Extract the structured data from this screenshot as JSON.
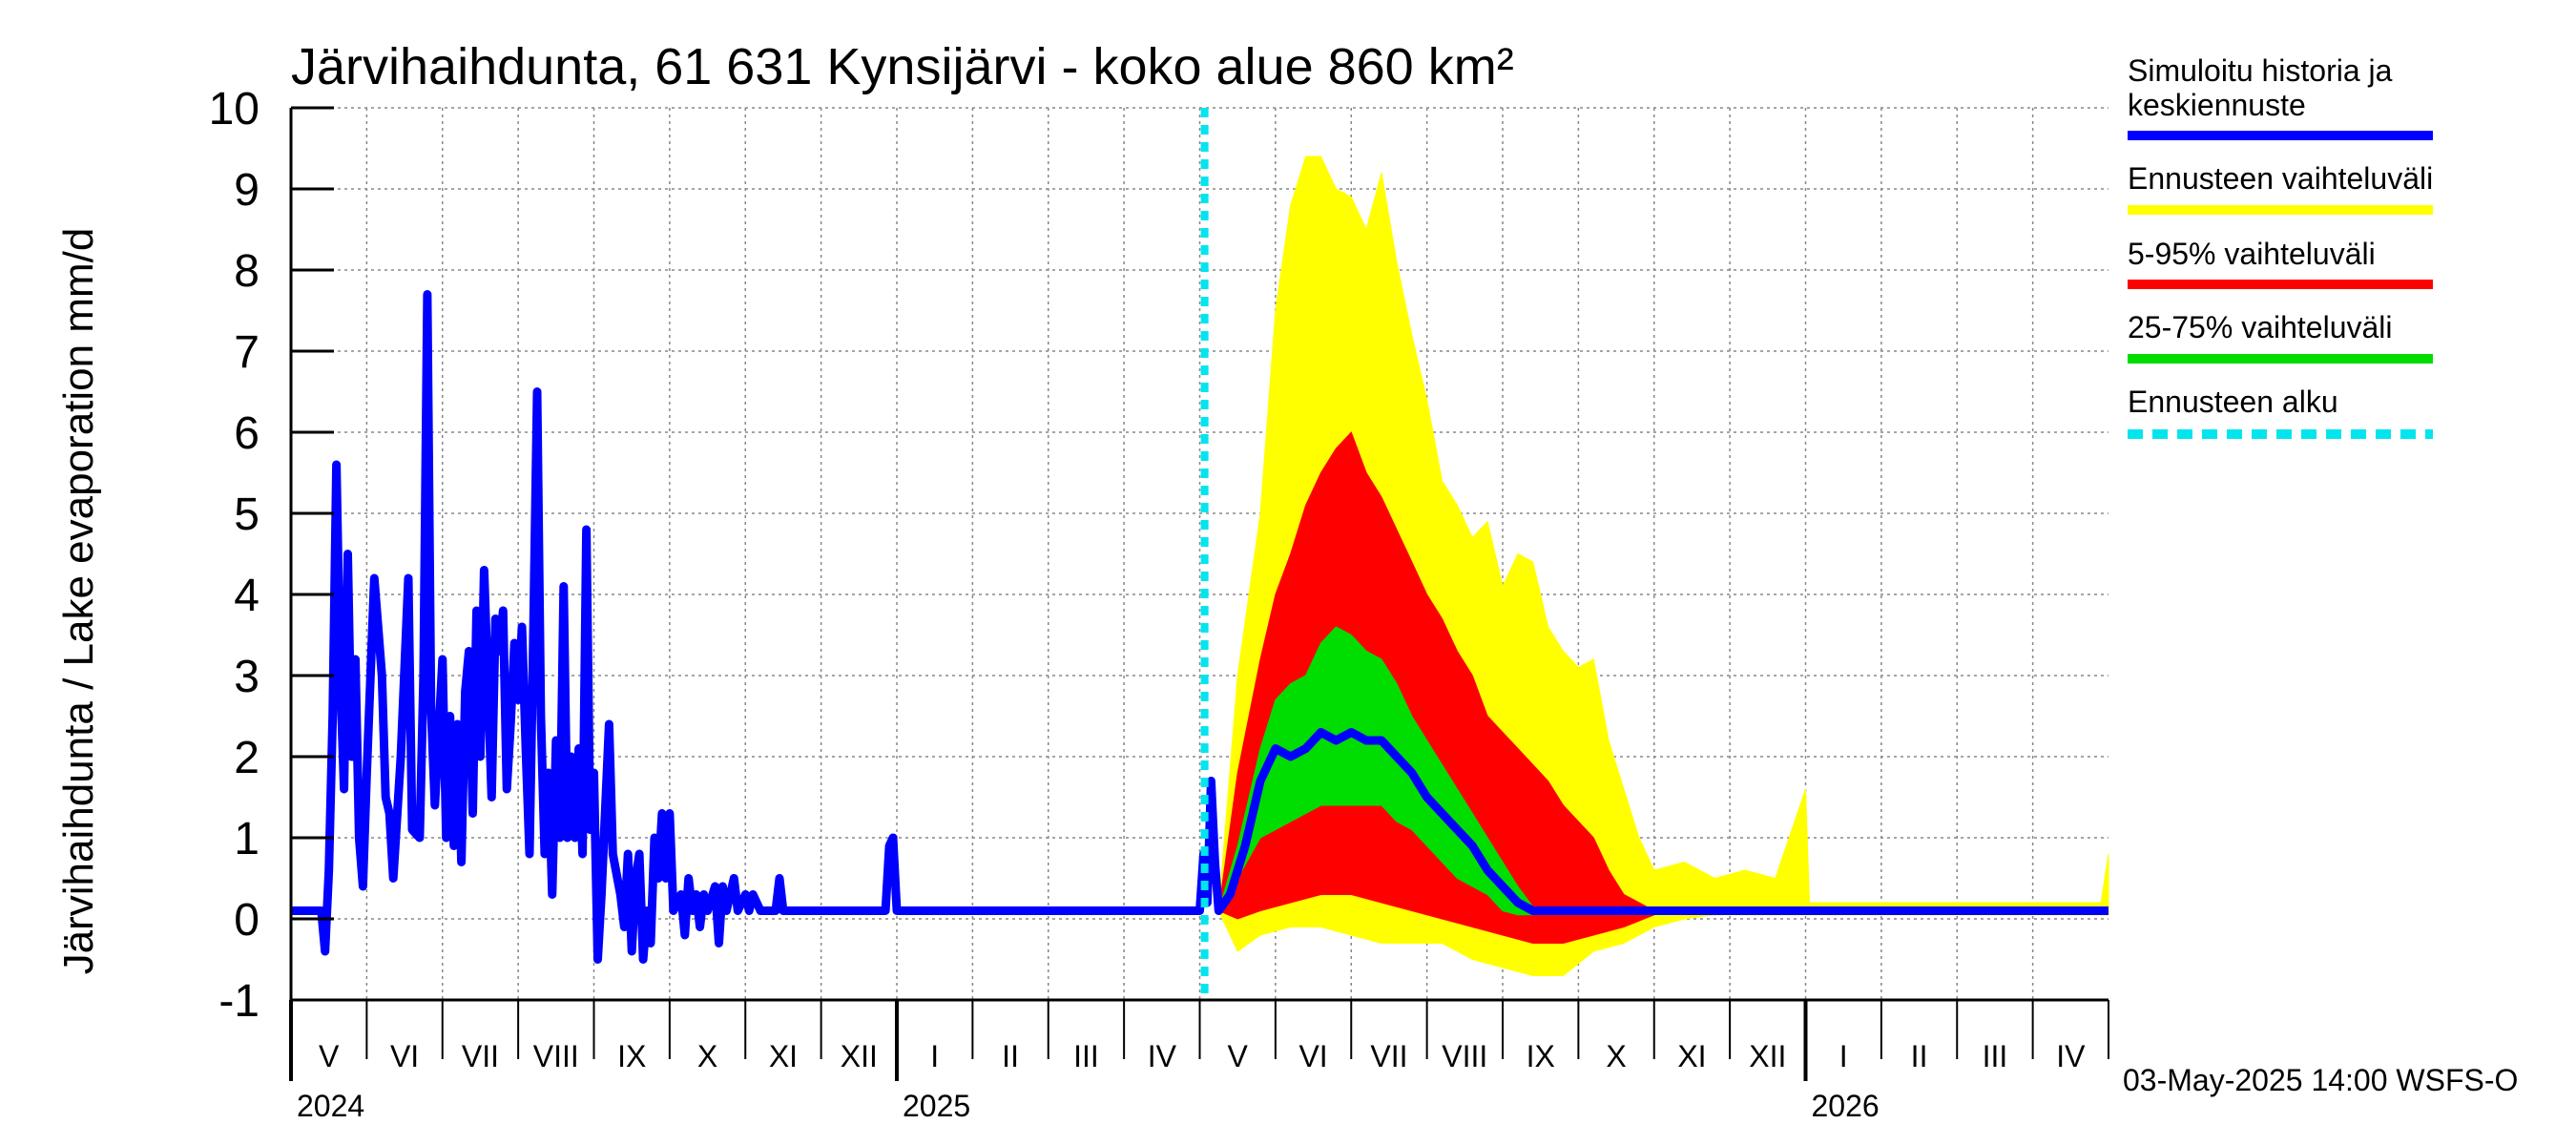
{
  "chart_data": {
    "type": "area",
    "title": "Järvihaihdunta, 61 631 Kynsijärvi - koko alue 860 km²",
    "ylabel": "Järvihaihdunta / Lake evaporation   mm/d",
    "ylim": [
      -1,
      10
    ],
    "yticks": [
      "-1",
      "0",
      "1",
      "2",
      "3",
      "4",
      "5",
      "6",
      "7",
      "8",
      "9",
      "10"
    ],
    "grid": true,
    "legend_position": "right",
    "forecast_start": "2025-05-03",
    "months": [
      {
        "label": "V",
        "year": "2024"
      },
      {
        "label": "VI"
      },
      {
        "label": "VII"
      },
      {
        "label": "VIII"
      },
      {
        "label": "IX"
      },
      {
        "label": "X"
      },
      {
        "label": "XI"
      },
      {
        "label": "XII"
      },
      {
        "label": "I",
        "year": "2025"
      },
      {
        "label": "II"
      },
      {
        "label": "III"
      },
      {
        "label": "IV"
      },
      {
        "label": "V"
      },
      {
        "label": "VI"
      },
      {
        "label": "VII"
      },
      {
        "label": "VIII"
      },
      {
        "label": "IX"
      },
      {
        "label": "X"
      },
      {
        "label": "XI"
      },
      {
        "label": "XII"
      },
      {
        "label": "I",
        "year": "2026"
      },
      {
        "label": "II"
      },
      {
        "label": "III"
      },
      {
        "label": "IV"
      }
    ],
    "series": [
      {
        "name": "Simuloitu historia ja keskiennuste",
        "color": "#0000ff",
        "points": [
          [
            0,
            0.1
          ],
          [
            0.4,
            0.1
          ],
          [
            0.45,
            -0.4
          ],
          [
            0.5,
            0.6
          ],
          [
            0.55,
            2.5
          ],
          [
            0.6,
            5.6
          ],
          [
            0.65,
            3.0
          ],
          [
            0.7,
            1.6
          ],
          [
            0.75,
            4.5
          ],
          [
            0.8,
            2.0
          ],
          [
            0.85,
            3.2
          ],
          [
            0.9,
            1.0
          ],
          [
            0.95,
            0.4
          ],
          [
            1.0,
            1.8
          ],
          [
            1.1,
            4.2
          ],
          [
            1.2,
            3.0
          ],
          [
            1.25,
            1.5
          ],
          [
            1.3,
            1.3
          ],
          [
            1.35,
            0.5
          ],
          [
            1.45,
            2.0
          ],
          [
            1.55,
            4.2
          ],
          [
            1.6,
            1.1
          ],
          [
            1.7,
            1.0
          ],
          [
            1.75,
            3.0
          ],
          [
            1.8,
            7.7
          ],
          [
            1.85,
            2.6
          ],
          [
            1.9,
            1.4
          ],
          [
            2.0,
            3.2
          ],
          [
            2.05,
            1.0
          ],
          [
            2.1,
            2.5
          ],
          [
            2.15,
            0.9
          ],
          [
            2.2,
            2.4
          ],
          [
            2.25,
            0.7
          ],
          [
            2.3,
            2.8
          ],
          [
            2.35,
            3.3
          ],
          [
            2.4,
            1.3
          ],
          [
            2.45,
            3.8
          ],
          [
            2.5,
            2.0
          ],
          [
            2.55,
            4.3
          ],
          [
            2.6,
            2.9
          ],
          [
            2.65,
            1.5
          ],
          [
            2.7,
            3.7
          ],
          [
            2.75,
            3.3
          ],
          [
            2.8,
            3.8
          ],
          [
            2.85,
            1.6
          ],
          [
            2.9,
            2.4
          ],
          [
            2.95,
            3.4
          ],
          [
            3.0,
            2.7
          ],
          [
            3.05,
            3.6
          ],
          [
            3.1,
            2.1
          ],
          [
            3.15,
            0.8
          ],
          [
            3.2,
            3.5
          ],
          [
            3.25,
            6.5
          ],
          [
            3.3,
            2.5
          ],
          [
            3.35,
            0.8
          ],
          [
            3.4,
            1.8
          ],
          [
            3.45,
            0.3
          ],
          [
            3.5,
            2.2
          ],
          [
            3.55,
            1.0
          ],
          [
            3.6,
            4.1
          ],
          [
            3.65,
            1.0
          ],
          [
            3.7,
            2.0
          ],
          [
            3.75,
            1.0
          ],
          [
            3.8,
            2.1
          ],
          [
            3.85,
            0.8
          ],
          [
            3.9,
            4.8
          ],
          [
            3.95,
            1.1
          ],
          [
            4.0,
            1.8
          ],
          [
            4.05,
            -0.5
          ],
          [
            4.1,
            0.3
          ],
          [
            4.2,
            2.4
          ],
          [
            4.25,
            0.8
          ],
          [
            4.35,
            0.3
          ],
          [
            4.4,
            -0.1
          ],
          [
            4.45,
            0.8
          ],
          [
            4.5,
            -0.4
          ],
          [
            4.55,
            0.5
          ],
          [
            4.6,
            0.8
          ],
          [
            4.65,
            -0.5
          ],
          [
            4.7,
            0.1
          ],
          [
            4.75,
            -0.3
          ],
          [
            4.8,
            1.0
          ],
          [
            4.85,
            0.5
          ],
          [
            4.9,
            1.3
          ],
          [
            4.95,
            0.5
          ],
          [
            5.0,
            1.3
          ],
          [
            5.05,
            0.1
          ],
          [
            5.15,
            0.3
          ],
          [
            5.2,
            -0.2
          ],
          [
            5.25,
            0.5
          ],
          [
            5.3,
            0.1
          ],
          [
            5.35,
            0.3
          ],
          [
            5.4,
            -0.1
          ],
          [
            5.45,
            0.3
          ],
          [
            5.5,
            0.1
          ],
          [
            5.6,
            0.4
          ],
          [
            5.65,
            -0.3
          ],
          [
            5.7,
            0.4
          ],
          [
            5.75,
            0.1
          ],
          [
            5.85,
            0.5
          ],
          [
            5.9,
            0.1
          ],
          [
            6.0,
            0.3
          ],
          [
            6.05,
            0.1
          ],
          [
            6.1,
            0.3
          ],
          [
            6.2,
            0.1
          ],
          [
            6.4,
            0.1
          ],
          [
            6.45,
            0.5
          ],
          [
            6.5,
            0.1
          ],
          [
            7.85,
            0.1
          ],
          [
            7.9,
            0.9
          ],
          [
            7.95,
            1.0
          ],
          [
            8.0,
            0.1
          ],
          [
            12.0,
            0.1
          ],
          [
            12.05,
            0.8
          ],
          [
            12.1,
            0.2
          ],
          [
            12.15,
            1.7
          ],
          [
            12.2,
            0.7
          ],
          [
            12.25,
            0.1
          ],
          [
            12.4,
            0.3
          ],
          [
            12.6,
            0.9
          ],
          [
            12.8,
            1.7
          ],
          [
            13.0,
            2.1
          ],
          [
            13.2,
            2.0
          ],
          [
            13.4,
            2.1
          ],
          [
            13.6,
            2.3
          ],
          [
            13.8,
            2.2
          ],
          [
            14.0,
            2.3
          ],
          [
            14.2,
            2.2
          ],
          [
            14.4,
            2.2
          ],
          [
            14.6,
            2.0
          ],
          [
            14.8,
            1.8
          ],
          [
            15.0,
            1.5
          ],
          [
            15.2,
            1.3
          ],
          [
            15.4,
            1.1
          ],
          [
            15.6,
            0.9
          ],
          [
            15.8,
            0.6
          ],
          [
            16.0,
            0.4
          ],
          [
            16.2,
            0.2
          ],
          [
            16.4,
            0.1
          ],
          [
            24.0,
            0.1
          ]
        ]
      },
      {
        "name": "Ennusteen vaihteluväli",
        "color": "#ffff00",
        "upper": [
          [
            12.25,
            0.1
          ],
          [
            12.5,
            3.0
          ],
          [
            12.8,
            5.0
          ],
          [
            13.0,
            7.5
          ],
          [
            13.2,
            8.8
          ],
          [
            13.4,
            9.4
          ],
          [
            13.6,
            9.4
          ],
          [
            13.8,
            9.0
          ],
          [
            14.0,
            8.9
          ],
          [
            14.2,
            8.5
          ],
          [
            14.4,
            9.2
          ],
          [
            14.6,
            8.1
          ],
          [
            14.8,
            7.2
          ],
          [
            15.0,
            6.4
          ],
          [
            15.2,
            5.4
          ],
          [
            15.4,
            5.1
          ],
          [
            15.6,
            4.7
          ],
          [
            15.8,
            4.9
          ],
          [
            16.0,
            4.1
          ],
          [
            16.2,
            4.5
          ],
          [
            16.4,
            4.4
          ],
          [
            16.6,
            3.6
          ],
          [
            16.8,
            3.3
          ],
          [
            17.0,
            3.1
          ],
          [
            17.2,
            3.2
          ],
          [
            17.4,
            2.2
          ],
          [
            17.6,
            1.6
          ],
          [
            17.8,
            1.0
          ],
          [
            18.0,
            0.6
          ],
          [
            18.4,
            0.7
          ],
          [
            18.8,
            0.5
          ],
          [
            19.2,
            0.6
          ],
          [
            19.6,
            0.5
          ],
          [
            20.0,
            1.6
          ],
          [
            20.05,
            0.2
          ],
          [
            20.4,
            0.2
          ],
          [
            23.9,
            0.2
          ],
          [
            24.0,
            0.8
          ]
        ],
        "lower": [
          [
            12.25,
            0.1
          ],
          [
            12.5,
            -0.4
          ],
          [
            12.8,
            -0.2
          ],
          [
            13.2,
            -0.1
          ],
          [
            13.6,
            -0.1
          ],
          [
            14.0,
            -0.2
          ],
          [
            14.4,
            -0.3
          ],
          [
            14.8,
            -0.3
          ],
          [
            15.2,
            -0.3
          ],
          [
            15.6,
            -0.5
          ],
          [
            16.0,
            -0.6
          ],
          [
            16.4,
            -0.7
          ],
          [
            16.8,
            -0.7
          ],
          [
            17.2,
            -0.4
          ],
          [
            17.6,
            -0.3
          ],
          [
            18.0,
            -0.1
          ],
          [
            18.4,
            0.0
          ],
          [
            18.8,
            0.05
          ],
          [
            20.0,
            0.05
          ],
          [
            24.0,
            0.05
          ]
        ]
      },
      {
        "name": "5-95% vaihteluväli",
        "color": "#ff0000",
        "upper": [
          [
            12.25,
            0.1
          ],
          [
            12.5,
            1.8
          ],
          [
            12.8,
            3.2
          ],
          [
            13.0,
            4.0
          ],
          [
            13.2,
            4.5
          ],
          [
            13.4,
            5.1
          ],
          [
            13.6,
            5.5
          ],
          [
            13.8,
            5.8
          ],
          [
            14.0,
            6.0
          ],
          [
            14.2,
            5.5
          ],
          [
            14.4,
            5.2
          ],
          [
            14.6,
            4.8
          ],
          [
            14.8,
            4.4
          ],
          [
            15.0,
            4.0
          ],
          [
            15.2,
            3.7
          ],
          [
            15.4,
            3.3
          ],
          [
            15.6,
            3.0
          ],
          [
            15.8,
            2.5
          ],
          [
            16.0,
            2.3
          ],
          [
            16.2,
            2.1
          ],
          [
            16.4,
            1.9
          ],
          [
            16.6,
            1.7
          ],
          [
            16.8,
            1.4
          ],
          [
            17.0,
            1.2
          ],
          [
            17.2,
            1.0
          ],
          [
            17.4,
            0.6
          ],
          [
            17.6,
            0.3
          ],
          [
            17.8,
            0.2
          ],
          [
            18.0,
            0.1
          ]
        ],
        "lower": [
          [
            12.25,
            0.1
          ],
          [
            12.5,
            0.0
          ],
          [
            12.8,
            0.1
          ],
          [
            13.2,
            0.2
          ],
          [
            13.6,
            0.3
          ],
          [
            14.0,
            0.3
          ],
          [
            14.4,
            0.2
          ],
          [
            14.8,
            0.1
          ],
          [
            15.2,
            0.0
          ],
          [
            15.6,
            -0.1
          ],
          [
            16.0,
            -0.2
          ],
          [
            16.4,
            -0.3
          ],
          [
            16.8,
            -0.3
          ],
          [
            17.2,
            -0.2
          ],
          [
            17.6,
            -0.1
          ],
          [
            18.0,
            0.05
          ]
        ]
      },
      {
        "name": "25-75% vaihteluväli",
        "color": "#00dd00",
        "upper": [
          [
            12.25,
            0.1
          ],
          [
            12.5,
            0.9
          ],
          [
            12.8,
            2.1
          ],
          [
            13.0,
            2.7
          ],
          [
            13.2,
            2.9
          ],
          [
            13.4,
            3.0
          ],
          [
            13.6,
            3.4
          ],
          [
            13.8,
            3.6
          ],
          [
            14.0,
            3.5
          ],
          [
            14.2,
            3.3
          ],
          [
            14.4,
            3.2
          ],
          [
            14.6,
            2.9
          ],
          [
            14.8,
            2.5
          ],
          [
            15.0,
            2.2
          ],
          [
            15.2,
            1.9
          ],
          [
            15.4,
            1.6
          ],
          [
            15.6,
            1.3
          ],
          [
            15.8,
            1.0
          ],
          [
            16.0,
            0.7
          ],
          [
            16.2,
            0.4
          ],
          [
            16.4,
            0.15
          ]
        ],
        "lower": [
          [
            12.25,
            0.1
          ],
          [
            12.5,
            0.5
          ],
          [
            12.8,
            1.0
          ],
          [
            13.0,
            1.1
          ],
          [
            13.2,
            1.2
          ],
          [
            13.4,
            1.3
          ],
          [
            13.6,
            1.4
          ],
          [
            13.8,
            1.4
          ],
          [
            14.0,
            1.4
          ],
          [
            14.2,
            1.4
          ],
          [
            14.4,
            1.4
          ],
          [
            14.6,
            1.2
          ],
          [
            14.8,
            1.1
          ],
          [
            15.0,
            0.9
          ],
          [
            15.2,
            0.7
          ],
          [
            15.4,
            0.5
          ],
          [
            15.6,
            0.4
          ],
          [
            15.8,
            0.3
          ],
          [
            16.0,
            0.1
          ],
          [
            16.2,
            0.05
          ],
          [
            16.4,
            0.05
          ]
        ]
      },
      {
        "name": "Ennusteen alku",
        "color": "#00e5ee"
      }
    ]
  },
  "legend": [
    {
      "label": "Simuloitu historia ja keskiennuste",
      "color": "#0000ff",
      "style": "solid"
    },
    {
      "label": "Ennusteen vaihteluväli",
      "color": "#ffff00",
      "style": "solid"
    },
    {
      "label": "5-95% vaihteluväli",
      "color": "#ff0000",
      "style": "solid"
    },
    {
      "label": "25-75% vaihteluväli",
      "color": "#00dd00",
      "style": "solid"
    },
    {
      "label": "Ennusteen alku",
      "color": "#00e5ee",
      "style": "dashed"
    }
  ],
  "footer": "03-May-2025 14:00 WSFS-O"
}
